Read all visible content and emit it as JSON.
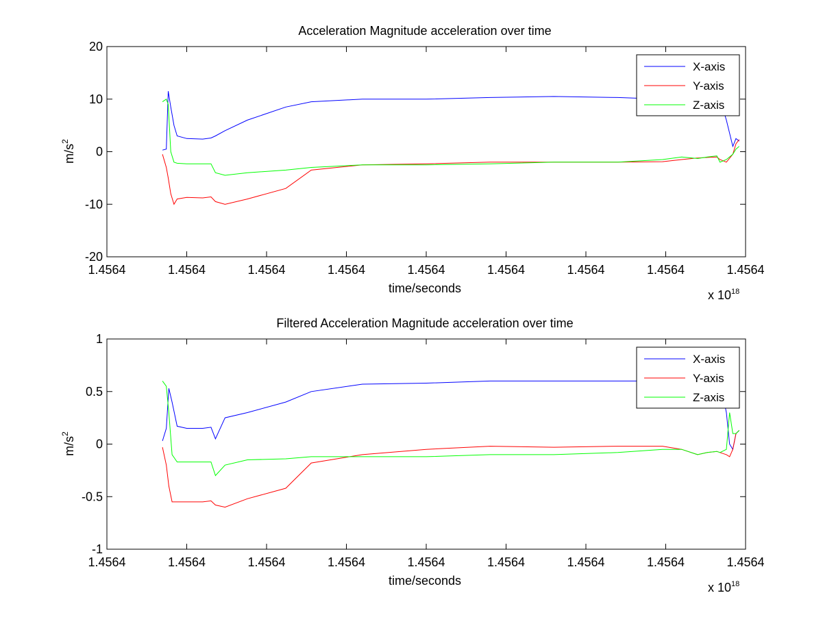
{
  "figure": {
    "background": "#ffffff"
  },
  "chart_data": [
    {
      "type": "line",
      "title": "Acceleration Magnitude acceleration over time",
      "xlabel": "time/seconds",
      "ylabel_base": "m/s",
      "ylabel_sup": "2",
      "xlim": [
        0,
        1
      ],
      "ylim": [
        -20,
        20
      ],
      "yticks": [
        -20,
        -10,
        0,
        10,
        20
      ],
      "ytick_labels": [
        "-20",
        "-10",
        "0",
        "10",
        "20"
      ],
      "xticks": [
        0,
        0.125,
        0.25,
        0.375,
        0.5,
        0.625,
        0.75,
        0.875,
        1
      ],
      "xtick_labels": [
        "1.4564",
        "1.4564",
        "1.4564",
        "1.4564",
        "1.4564",
        "1.4564",
        "1.4564",
        "1.4564",
        "1.4564"
      ],
      "x_multiplier_base": "x 10",
      "x_multiplier_exp": "18",
      "legend": {
        "position": "top-right",
        "entries": [
          "X-axis",
          "Y-axis",
          "Z-axis"
        ]
      },
      "series": [
        {
          "name": "X-axis",
          "color": "#0000ff",
          "points": [
            [
              0.087,
              0.3
            ],
            [
              0.093,
              0.5
            ],
            [
              0.096,
              11.5
            ],
            [
              0.1,
              8.5
            ],
            [
              0.105,
              5.0
            ],
            [
              0.11,
              3.0
            ],
            [
              0.125,
              2.5
            ],
            [
              0.15,
              2.4
            ],
            [
              0.163,
              2.6
            ],
            [
              0.17,
              3.0
            ],
            [
              0.185,
              4.0
            ],
            [
              0.22,
              6.0
            ],
            [
              0.28,
              8.5
            ],
            [
              0.32,
              9.5
            ],
            [
              0.4,
              10.0
            ],
            [
              0.5,
              10.0
            ],
            [
              0.6,
              10.3
            ],
            [
              0.7,
              10.5
            ],
            [
              0.8,
              10.3
            ],
            [
              0.87,
              10.0
            ],
            [
              0.9,
              9.8
            ],
            [
              0.925,
              9.6
            ],
            [
              0.94,
              9.5
            ],
            [
              0.955,
              8.5
            ],
            [
              0.96,
              10.0
            ],
            [
              0.97,
              6.0
            ],
            [
              0.98,
              1.0
            ],
            [
              0.985,
              2.5
            ],
            [
              0.99,
              2.0
            ]
          ]
        },
        {
          "name": "Y-axis",
          "color": "#ff0000",
          "points": [
            [
              0.087,
              -0.5
            ],
            [
              0.093,
              -3.0
            ],
            [
              0.096,
              -5.0
            ],
            [
              0.1,
              -8.0
            ],
            [
              0.105,
              -10.0
            ],
            [
              0.11,
              -9.0
            ],
            [
              0.125,
              -8.7
            ],
            [
              0.15,
              -8.8
            ],
            [
              0.163,
              -8.6
            ],
            [
              0.17,
              -9.5
            ],
            [
              0.185,
              -10.0
            ],
            [
              0.22,
              -9.0
            ],
            [
              0.28,
              -7.0
            ],
            [
              0.32,
              -3.5
            ],
            [
              0.4,
              -2.5
            ],
            [
              0.5,
              -2.3
            ],
            [
              0.6,
              -2.0
            ],
            [
              0.7,
              -2.0
            ],
            [
              0.8,
              -2.0
            ],
            [
              0.87,
              -1.9
            ],
            [
              0.9,
              -1.5
            ],
            [
              0.925,
              -1.2
            ],
            [
              0.94,
              -1.1
            ],
            [
              0.955,
              -1.0
            ],
            [
              0.96,
              -1.5
            ],
            [
              0.97,
              -2.0
            ],
            [
              0.98,
              -0.5
            ],
            [
              0.985,
              1.5
            ],
            [
              0.99,
              2.3
            ]
          ]
        },
        {
          "name": "Z-axis",
          "color": "#00ff00",
          "points": [
            [
              0.087,
              9.5
            ],
            [
              0.093,
              10.0
            ],
            [
              0.096,
              9.0
            ],
            [
              0.1,
              0.0
            ],
            [
              0.105,
              -2.0
            ],
            [
              0.11,
              -2.2
            ],
            [
              0.125,
              -2.3
            ],
            [
              0.15,
              -2.3
            ],
            [
              0.163,
              -2.3
            ],
            [
              0.17,
              -4.0
            ],
            [
              0.185,
              -4.5
            ],
            [
              0.22,
              -4.0
            ],
            [
              0.28,
              -3.5
            ],
            [
              0.32,
              -3.0
            ],
            [
              0.4,
              -2.5
            ],
            [
              0.5,
              -2.5
            ],
            [
              0.6,
              -2.3
            ],
            [
              0.7,
              -2.0
            ],
            [
              0.8,
              -2.0
            ],
            [
              0.87,
              -1.5
            ],
            [
              0.9,
              -1.0
            ],
            [
              0.925,
              -1.3
            ],
            [
              0.94,
              -1.0
            ],
            [
              0.955,
              -0.8
            ],
            [
              0.96,
              -2.0
            ],
            [
              0.97,
              -1.5
            ],
            [
              0.98,
              -0.5
            ],
            [
              0.985,
              0.5
            ],
            [
              0.99,
              1.0
            ]
          ]
        }
      ]
    },
    {
      "type": "line",
      "title": "Filtered Acceleration Magnitude acceleration over time",
      "xlabel": "time/seconds",
      "ylabel_base": "m/s",
      "ylabel_sup": "2",
      "xlim": [
        0,
        1
      ],
      "ylim": [
        -1,
        1
      ],
      "yticks": [
        -1,
        -0.5,
        0,
        0.5,
        1
      ],
      "ytick_labels": [
        "-1",
        "-0.5",
        "0",
        "0.5",
        "1"
      ],
      "xticks": [
        0,
        0.125,
        0.25,
        0.375,
        0.5,
        0.625,
        0.75,
        0.875,
        1
      ],
      "xtick_labels": [
        "1.4564",
        "1.4564",
        "1.4564",
        "1.4564",
        "1.4564",
        "1.4564",
        "1.4564",
        "1.4564",
        "1.4564"
      ],
      "x_multiplier_base": "x 10",
      "x_multiplier_exp": "18",
      "legend": {
        "position": "top-right",
        "entries": [
          "X-axis",
          "Y-axis",
          "Z-axis"
        ]
      },
      "series": [
        {
          "name": "X-axis",
          "color": "#0000ff",
          "points": [
            [
              0.087,
              0.03
            ],
            [
              0.093,
              0.15
            ],
            [
              0.097,
              0.53
            ],
            [
              0.102,
              0.4
            ],
            [
              0.11,
              0.17
            ],
            [
              0.125,
              0.15
            ],
            [
              0.15,
              0.15
            ],
            [
              0.163,
              0.16
            ],
            [
              0.17,
              0.05
            ],
            [
              0.185,
              0.25
            ],
            [
              0.22,
              0.3
            ],
            [
              0.28,
              0.4
            ],
            [
              0.32,
              0.5
            ],
            [
              0.4,
              0.57
            ],
            [
              0.5,
              0.58
            ],
            [
              0.6,
              0.6
            ],
            [
              0.7,
              0.6
            ],
            [
              0.8,
              0.6
            ],
            [
              0.87,
              0.6
            ],
            [
              0.9,
              0.6
            ],
            [
              0.925,
              0.58
            ],
            [
              0.94,
              0.58
            ],
            [
              0.955,
              0.58
            ],
            [
              0.96,
              0.6
            ],
            [
              0.97,
              0.3
            ],
            [
              0.975,
              0.0
            ],
            [
              0.98,
              -0.05
            ],
            [
              0.985,
              0.1
            ],
            [
              0.99,
              0.13
            ]
          ]
        },
        {
          "name": "Y-axis",
          "color": "#ff0000",
          "points": [
            [
              0.087,
              -0.03
            ],
            [
              0.093,
              -0.2
            ],
            [
              0.097,
              -0.4
            ],
            [
              0.102,
              -0.55
            ],
            [
              0.11,
              -0.55
            ],
            [
              0.125,
              -0.55
            ],
            [
              0.15,
              -0.55
            ],
            [
              0.163,
              -0.54
            ],
            [
              0.17,
              -0.58
            ],
            [
              0.185,
              -0.6
            ],
            [
              0.22,
              -0.52
            ],
            [
              0.28,
              -0.42
            ],
            [
              0.32,
              -0.18
            ],
            [
              0.4,
              -0.1
            ],
            [
              0.5,
              -0.05
            ],
            [
              0.6,
              -0.02
            ],
            [
              0.7,
              -0.03
            ],
            [
              0.8,
              -0.02
            ],
            [
              0.87,
              -0.02
            ],
            [
              0.9,
              -0.05
            ],
            [
              0.925,
              -0.1
            ],
            [
              0.94,
              -0.08
            ],
            [
              0.955,
              -0.07
            ],
            [
              0.96,
              -0.08
            ],
            [
              0.97,
              -0.1
            ],
            [
              0.975,
              -0.12
            ],
            [
              0.98,
              -0.05
            ],
            [
              0.985,
              0.1
            ],
            [
              0.99,
              0.13
            ]
          ]
        },
        {
          "name": "Z-axis",
          "color": "#00ff00",
          "points": [
            [
              0.087,
              0.6
            ],
            [
              0.093,
              0.55
            ],
            [
              0.097,
              0.3
            ],
            [
              0.102,
              -0.1
            ],
            [
              0.11,
              -0.17
            ],
            [
              0.125,
              -0.17
            ],
            [
              0.15,
              -0.17
            ],
            [
              0.163,
              -0.17
            ],
            [
              0.17,
              -0.3
            ],
            [
              0.185,
              -0.2
            ],
            [
              0.22,
              -0.15
            ],
            [
              0.28,
              -0.14
            ],
            [
              0.32,
              -0.12
            ],
            [
              0.4,
              -0.12
            ],
            [
              0.5,
              -0.12
            ],
            [
              0.6,
              -0.1
            ],
            [
              0.7,
              -0.1
            ],
            [
              0.8,
              -0.08
            ],
            [
              0.87,
              -0.05
            ],
            [
              0.9,
              -0.05
            ],
            [
              0.925,
              -0.1
            ],
            [
              0.94,
              -0.08
            ],
            [
              0.955,
              -0.07
            ],
            [
              0.96,
              -0.08
            ],
            [
              0.97,
              -0.05
            ],
            [
              0.975,
              0.3
            ],
            [
              0.98,
              0.1
            ],
            [
              0.985,
              0.1
            ],
            [
              0.99,
              0.13
            ]
          ]
        }
      ]
    }
  ]
}
